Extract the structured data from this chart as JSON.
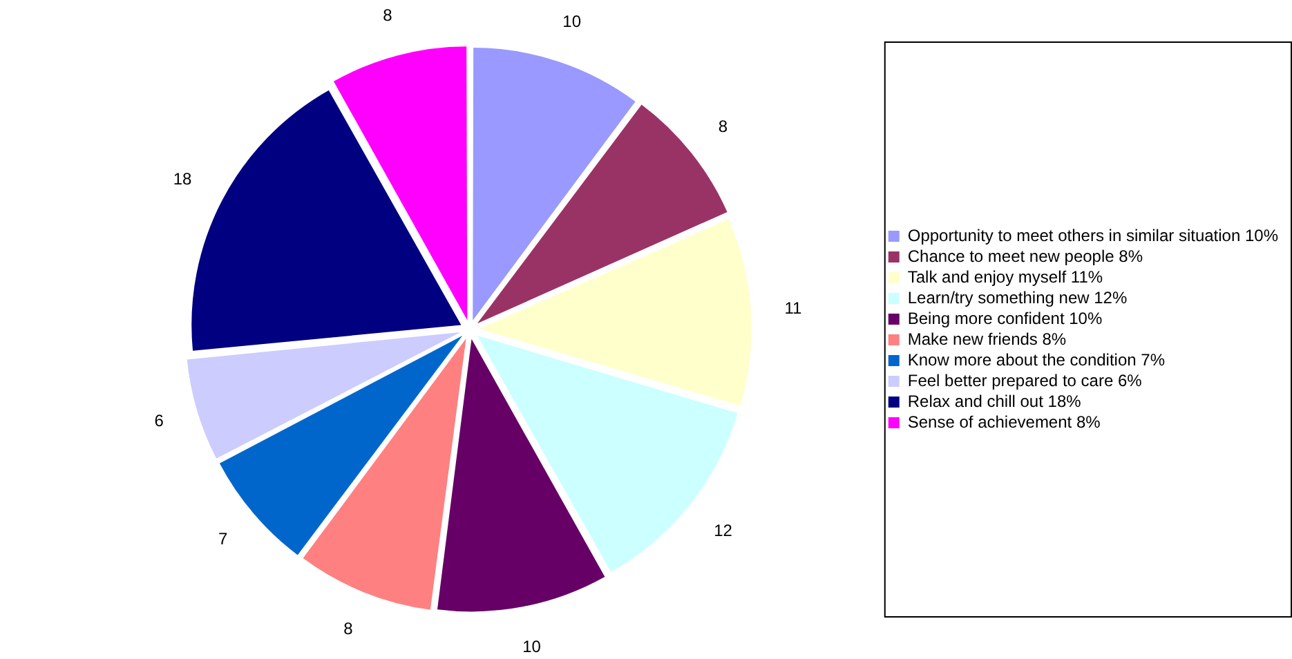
{
  "chart_data": {
    "type": "pie",
    "categories": [
      "Opportunity to meet others in similar situation 10%",
      "Chance to meet new people 8%",
      "Talk and enjoy myself 11%",
      "Learn/try something new 12%",
      "Being more confident 10%",
      "Make new friends 8%",
      "Know more about the condition 7%",
      "Feel better prepared to care 6%",
      "Relax and chill out 18%",
      "Sense of achievement 8%"
    ],
    "values": [
      10,
      8,
      11,
      12,
      10,
      8,
      7,
      6,
      18,
      8
    ],
    "colors": [
      "#9999ff",
      "#993366",
      "#ffffcc",
      "#ccffff",
      "#660066",
      "#ff8080",
      "#0066cc",
      "#ccccff",
      "#000080",
      "#ff00ff"
    ],
    "data_labels": true,
    "legend": "right"
  }
}
